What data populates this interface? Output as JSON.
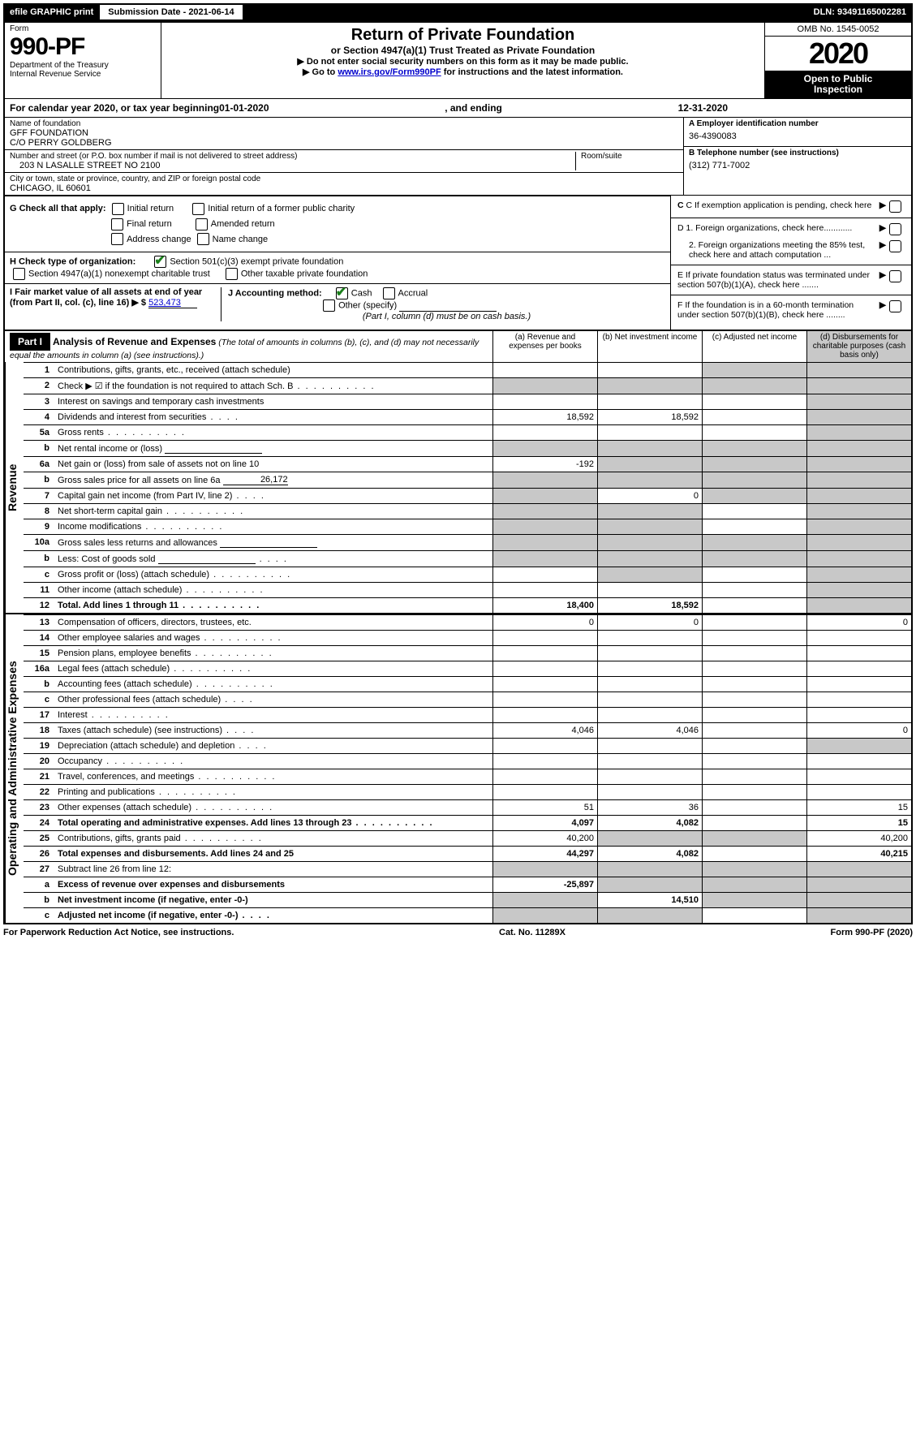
{
  "topbar": {
    "efile": "efile GRAPHIC print",
    "submission_label": "Submission Date - 2021-06-14",
    "dln_label": "DLN: 93491165002281"
  },
  "header": {
    "form_word": "Form",
    "form_number": "990-PF",
    "dept1": "Department of the Treasury",
    "dept2": "Internal Revenue Service",
    "title": "Return of Private Foundation",
    "subtitle": "or Section 4947(a)(1) Trust Treated as Private Foundation",
    "note1": "▶ Do not enter social security numbers on this form as it may be made public.",
    "note2_pre": "▶ Go to ",
    "note2_link": "www.irs.gov/Form990PF",
    "note2_post": " for instructions and the latest information.",
    "omb": "OMB No. 1545-0052",
    "year": "2020",
    "open_public1": "Open to Public",
    "open_public2": "Inspection"
  },
  "cal_year": {
    "pre": "For calendar year 2020, or tax year beginning ",
    "begin": "01-01-2020",
    "mid": ", and ending ",
    "end": "12-31-2020"
  },
  "info": {
    "name_label": "Name of foundation",
    "name1": "GFF FOUNDATION",
    "name2": "C/O PERRY GOLDBERG",
    "addr_label": "Number and street (or P.O. box number if mail is not delivered to street address)",
    "addr": "203 N LASALLE STREET NO 2100",
    "room_label": "Room/suite",
    "city_label": "City or town, state or province, country, and ZIP or foreign postal code",
    "city": "CHICAGO, IL  60601",
    "ein_label": "A Employer identification number",
    "ein": "36-4390083",
    "phone_label": "B Telephone number (see instructions)",
    "phone": "(312) 771-7002",
    "c_label": "C  If exemption application is pending, check here",
    "d1": "D 1. Foreign organizations, check here............",
    "d2": "2. Foreign organizations meeting the 85% test, check here and attach computation ...",
    "e": "E  If private foundation status was terminated under section 507(b)(1)(A), check here .......",
    "f": "F  If the foundation is in a 60-month termination under section 507(b)(1)(B), check here ........"
  },
  "g": {
    "label": "G Check all that apply:",
    "initial": "Initial return",
    "initial_former": "Initial return of a former public charity",
    "final": "Final return",
    "amended": "Amended return",
    "address": "Address change",
    "name_change": "Name change"
  },
  "h": {
    "label": "H Check type of organization:",
    "opt1": "Section 501(c)(3) exempt private foundation",
    "opt2": "Section 4947(a)(1) nonexempt charitable trust",
    "opt3": "Other taxable private foundation"
  },
  "i": {
    "label": "I Fair market value of all assets at end of year (from Part II, col. (c), line 16)",
    "arrow": "▶ $",
    "value": "523,473"
  },
  "j": {
    "label": "J Accounting method:",
    "cash": "Cash",
    "accrual": "Accrual",
    "other": "Other (specify)",
    "note": "(Part I, column (d) must be on cash basis.)"
  },
  "part1": {
    "tag": "Part I",
    "title": "Analysis of Revenue and Expenses",
    "title_note": " (The total of amounts in columns (b), (c), and (d) may not necessarily equal the amounts in column (a) (see instructions).)",
    "col_a": "(a)   Revenue and expenses per books",
    "col_b": "(b)  Net investment income",
    "col_c": "(c)  Adjusted net income",
    "col_d": "(d)  Disbursements for charitable purposes (cash basis only)"
  },
  "side_labels": {
    "revenue": "Revenue",
    "expenses": "Operating and Administrative Expenses"
  },
  "rows": [
    {
      "n": "1",
      "d": "Contributions, gifts, grants, etc., received (attach schedule)",
      "a": "",
      "b": "",
      "cGrey": true,
      "dGrey": true
    },
    {
      "n": "2",
      "d": "Check ▶ ☑ if the foundation is not required to attach Sch. B",
      "dots": true,
      "a": "",
      "b": "",
      "cGrey": true,
      "dGrey": true,
      "bGrey": true,
      "aGrey": true
    },
    {
      "n": "3",
      "d": "Interest on savings and temporary cash investments",
      "a": "",
      "b": "",
      "c": "",
      "dGrey": true
    },
    {
      "n": "4",
      "d": "Dividends and interest from securities",
      "dots": "short",
      "a": "18,592",
      "b": "18,592",
      "c": "",
      "dGrey": true
    },
    {
      "n": "5a",
      "d": "Gross rents",
      "dots": true,
      "a": "",
      "b": "",
      "c": "",
      "dGrey": true
    },
    {
      "n": "b",
      "d": "Net rental income or (loss)",
      "inlineBox": true,
      "aGrey": true,
      "bGrey": true,
      "cGrey": true,
      "dGrey": true
    },
    {
      "n": "6a",
      "d": "Net gain or (loss) from sale of assets not on line 10",
      "a": "-192",
      "bGrey": true,
      "cGrey": true,
      "dGrey": true
    },
    {
      "n": "b",
      "d": "Gross sales price for all assets on line 6a",
      "inlineVal": "26,172",
      "aGrey": true,
      "bGrey": true,
      "cGrey": true,
      "dGrey": true
    },
    {
      "n": "7",
      "d": "Capital gain net income (from Part IV, line 2)",
      "dots": "short",
      "aGrey": true,
      "b": "0",
      "cGrey": true,
      "dGrey": true
    },
    {
      "n": "8",
      "d": "Net short-term capital gain",
      "dots": true,
      "aGrey": true,
      "bGrey": true,
      "c": "",
      "dGrey": true
    },
    {
      "n": "9",
      "d": "Income modifications",
      "dots": true,
      "aGrey": true,
      "bGrey": true,
      "c": "",
      "dGrey": true
    },
    {
      "n": "10a",
      "d": "Gross sales less returns and allowances",
      "inlineBox": true,
      "aGrey": true,
      "bGrey": true,
      "cGrey": true,
      "dGrey": true
    },
    {
      "n": "b",
      "d": "Less: Cost of goods sold",
      "dots": "short",
      "inlineBox": true,
      "aGrey": true,
      "bGrey": true,
      "cGrey": true,
      "dGrey": true
    },
    {
      "n": "c",
      "d": "Gross profit or (loss) (attach schedule)",
      "dots": true,
      "aGrey": false,
      "a": "",
      "bGrey": true,
      "c": "",
      "dGrey": true
    },
    {
      "n": "11",
      "d": "Other income (attach schedule)",
      "dots": true,
      "a": "",
      "b": "",
      "c": "",
      "dGrey": true
    },
    {
      "n": "12",
      "d": "Total. Add lines 1 through 11",
      "dots": true,
      "bold": true,
      "a": "18,400",
      "b": "18,592",
      "c": "",
      "dGrey": true
    }
  ],
  "exp_rows": [
    {
      "n": "13",
      "d": "Compensation of officers, directors, trustees, etc.",
      "a": "0",
      "b": "0",
      "c": "",
      "dd": "0"
    },
    {
      "n": "14",
      "d": "Other employee salaries and wages",
      "dots": true,
      "a": "",
      "b": "",
      "c": "",
      "dd": ""
    },
    {
      "n": "15",
      "d": "Pension plans, employee benefits",
      "dots": true,
      "a": "",
      "b": "",
      "c": "",
      "dd": ""
    },
    {
      "n": "16a",
      "d": "Legal fees (attach schedule)",
      "dots": true,
      "a": "",
      "b": "",
      "c": "",
      "dd": ""
    },
    {
      "n": "b",
      "d": "Accounting fees (attach schedule)",
      "dots": true,
      "a": "",
      "b": "",
      "c": "",
      "dd": ""
    },
    {
      "n": "c",
      "d": "Other professional fees (attach schedule)",
      "dots": "short",
      "a": "",
      "b": "",
      "c": "",
      "dd": ""
    },
    {
      "n": "17",
      "d": "Interest",
      "dots": true,
      "a": "",
      "b": "",
      "c": "",
      "dd": ""
    },
    {
      "n": "18",
      "d": "Taxes (attach schedule) (see instructions)",
      "dots": "short",
      "a": "4,046",
      "b": "4,046",
      "c": "",
      "dd": "0"
    },
    {
      "n": "19",
      "d": "Depreciation (attach schedule) and depletion",
      "dots": "short",
      "a": "",
      "b": "",
      "c": "",
      "ddGrey": true
    },
    {
      "n": "20",
      "d": "Occupancy",
      "dots": true,
      "a": "",
      "b": "",
      "c": "",
      "dd": ""
    },
    {
      "n": "21",
      "d": "Travel, conferences, and meetings",
      "dots": true,
      "a": "",
      "b": "",
      "c": "",
      "dd": ""
    },
    {
      "n": "22",
      "d": "Printing and publications",
      "dots": true,
      "a": "",
      "b": "",
      "c": "",
      "dd": ""
    },
    {
      "n": "23",
      "d": "Other expenses (attach schedule)",
      "dots": true,
      "a": "51",
      "b": "36",
      "c": "",
      "dd": "15"
    },
    {
      "n": "24",
      "d": "Total operating and administrative expenses. Add lines 13 through 23",
      "dots": true,
      "bold": true,
      "a": "4,097",
      "b": "4,082",
      "c": "",
      "dd": "15"
    },
    {
      "n": "25",
      "d": "Contributions, gifts, grants paid",
      "dots": true,
      "a": "40,200",
      "bGrey": true,
      "cGrey": true,
      "dd": "40,200"
    },
    {
      "n": "26",
      "d": "Total expenses and disbursements. Add lines 24 and 25",
      "bold": true,
      "a": "44,297",
      "b": "4,082",
      "c": "",
      "dd": "40,215"
    },
    {
      "n": "27",
      "d": "Subtract line 26 from line 12:",
      "aGrey": true,
      "bGrey": true,
      "cGrey": true,
      "ddGrey": true
    },
    {
      "n": "a",
      "d": "Excess of revenue over expenses and disbursements",
      "bold": true,
      "a": "-25,897",
      "bGrey": true,
      "cGrey": true,
      "ddGrey": true
    },
    {
      "n": "b",
      "d": "Net investment income (if negative, enter -0-)",
      "bold": true,
      "aGrey": true,
      "b": "14,510",
      "cGrey": true,
      "ddGrey": true
    },
    {
      "n": "c",
      "d": "Adjusted net income (if negative, enter -0-)",
      "dots": "short",
      "bold": true,
      "aGrey": true,
      "bGrey": true,
      "c": "",
      "ddGrey": true
    }
  ],
  "footer": {
    "left": "For Paperwork Reduction Act Notice, see instructions.",
    "center": "Cat. No. 11289X",
    "right": "Form 990-PF (2020)"
  },
  "colors": {
    "black": "#000000",
    "white": "#ffffff",
    "grey": "#c8c8c8",
    "link": "#0000cc",
    "check_green": "#1a7f1a"
  }
}
